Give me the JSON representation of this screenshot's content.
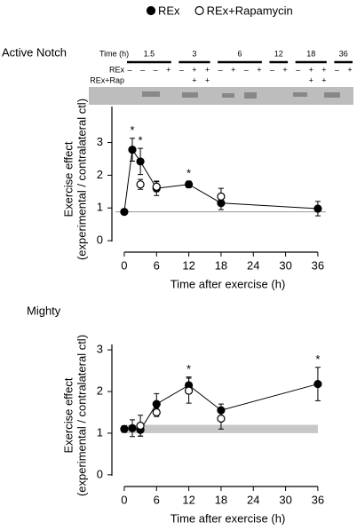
{
  "legend_markers": [
    "filled",
    "open"
  ],
  "chart_data": [
    {
      "type": "scatter-line",
      "title": "Active Notch",
      "blot": {
        "label": "Time (h)",
        "rows": [
          "REx",
          "REx+Rap"
        ],
        "groups": [
          {
            "time": "1.5",
            "rex": [
              "–",
              "–",
              "–",
              "+"
            ]
          },
          {
            "time": "3",
            "rex": [
              "–",
              "+",
              "+"
            ],
            "rap": [
              "+",
              "+"
            ]
          },
          {
            "time": "6",
            "rex": [
              "–",
              "+",
              "–",
              "+"
            ]
          },
          {
            "time": "12",
            "rex": [
              "–",
              "+"
            ]
          },
          {
            "time": "18",
            "rex": [
              "–",
              "+",
              "+"
            ],
            "rap": [
              "+",
              "+"
            ]
          },
          {
            "time": "36",
            "rex": [
              "–",
              "+"
            ]
          }
        ]
      },
      "x_label": "Time after exercise (h)",
      "y_label": [
        "Exercise effect",
        "(experimental / contralateral ctl)"
      ],
      "xlim": [
        -2.3,
        37.5
      ],
      "xticks": [
        0,
        6,
        12,
        18,
        24,
        30,
        36
      ],
      "ylim": [
        -0.35,
        4.1
      ],
      "yticks": [
        0,
        1,
        2,
        3
      ],
      "reference_line": 0.88,
      "series": [
        {
          "name": "REx",
          "color": "#000000",
          "marker": "filled",
          "connect": true,
          "x": [
            0,
            1.5,
            3,
            6,
            12,
            18,
            36
          ],
          "values": [
            0.88,
            2.78,
            2.42,
            1.6,
            1.72,
            1.15,
            0.98
          ],
          "errors": [
            0.03,
            0.35,
            0.4,
            0.22,
            0.1,
            0.2,
            0.22
          ]
        },
        {
          "name": "REx+Rapamycin",
          "color": "#000000",
          "marker": "open",
          "connect": false,
          "x": [
            3,
            6,
            18
          ],
          "values": [
            1.72,
            1.65,
            1.35
          ],
          "errors": [
            0.15,
            0.15,
            0.25
          ]
        }
      ],
      "annotations": [
        {
          "x": 1.5,
          "text": "*"
        },
        {
          "x": 3,
          "text": "*"
        },
        {
          "x": 12,
          "text": "*"
        }
      ]
    },
    {
      "type": "scatter-line",
      "title": "Mighty",
      "x_label": "Time after exercise (h)",
      "y_label": [
        "Exercise effect",
        "(experimental / contralateral ctl)"
      ],
      "xlim": [
        -2.3,
        37.5
      ],
      "xticks": [
        0,
        6,
        12,
        18,
        24,
        30,
        36
      ],
      "ylim": [
        -0.28,
        3.13
      ],
      "yticks": [
        0,
        1,
        2,
        3
      ],
      "band": {
        "range": [
          1.0,
          1.2
        ],
        "x": [
          0,
          36
        ]
      },
      "series": [
        {
          "color": "#000000",
          "marker": "filled",
          "connect": true,
          "x": [
            0,
            1.5,
            3,
            6,
            12,
            18,
            36
          ],
          "values": [
            1.1,
            1.12,
            1.08,
            1.7,
            2.15,
            1.55,
            2.18
          ],
          "errors": [
            0.08,
            0.2,
            0.15,
            0.25,
            0.2,
            0.15,
            0.4
          ]
        },
        {
          "color": "#000000",
          "marker": "open",
          "connect": false,
          "x": [
            3,
            6,
            12,
            18
          ],
          "values": [
            1.18,
            1.5,
            2.02,
            1.35
          ],
          "errors": [
            0.25,
            0.1,
            0.3,
            0.25
          ]
        }
      ],
      "annotations": [
        {
          "x": 12,
          "text": "*"
        },
        {
          "x": 36,
          "text": "*"
        }
      ]
    }
  ]
}
